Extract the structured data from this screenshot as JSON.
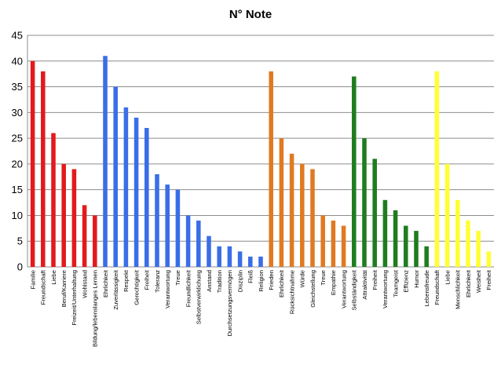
{
  "chart_data": {
    "type": "bar",
    "title": "N° Note",
    "xlabel": "",
    "ylabel": "",
    "ylim": [
      0,
      45
    ],
    "yticks": [
      0,
      5,
      10,
      15,
      20,
      25,
      30,
      35,
      40,
      45
    ],
    "grid": true,
    "legend": "none",
    "categories": [
      "Familie",
      "Freundschaft",
      "Liebe",
      "Beruf/Karriere",
      "Freizeit/Unterhaltung",
      "Wohlstand",
      "Bildung/lebenslanges Lernen",
      "Ehrlichkeit",
      "Zuverlässigkeit",
      "Respekt",
      "Gerechtigkeit",
      "Freiheit",
      "Toleranz",
      "Verantwortung",
      "Treue",
      "Freundlichkeit",
      "Selbstverwirklichung",
      "Anstand",
      "Tradition",
      "Durchsetzungsvermögen",
      "Disziplin",
      "Fleiß",
      "Religion",
      "Frieden",
      "Ehrlichkeit",
      "Rücksichtnahme",
      "Würde",
      "Gleichstellung",
      "Treue",
      "Empathie",
      "Verantwortung",
      "Selbständigkeit",
      "Attraktivität",
      "Freiheit",
      "Verantwortung",
      "Teamgeist",
      "Effizienz",
      "Humor",
      "Lebensfreude",
      "Freundschaft",
      "Liebe",
      "Menschlichkeit",
      "Ehrlichkeit",
      "Weisheit",
      "Freiheit"
    ],
    "values": [
      40,
      38,
      26,
      20,
      19,
      12,
      10,
      41,
      35,
      31,
      29,
      27,
      18,
      16,
      15,
      10,
      9,
      6,
      4,
      4,
      3,
      2,
      2,
      38,
      25,
      22,
      20,
      19,
      10,
      9,
      8,
      37,
      25,
      21,
      13,
      11,
      8,
      7,
      4,
      38,
      20,
      13,
      9,
      7,
      3
    ],
    "groups": [
      {
        "count": 7,
        "color": "#e31a1c"
      },
      {
        "count": 16,
        "color": "#3a6ee8"
      },
      {
        "count": 8,
        "color": "#e07a22"
      },
      {
        "count": 8,
        "color": "#1e7d1e"
      },
      {
        "count": 6,
        "color": "#ffff33"
      }
    ]
  }
}
